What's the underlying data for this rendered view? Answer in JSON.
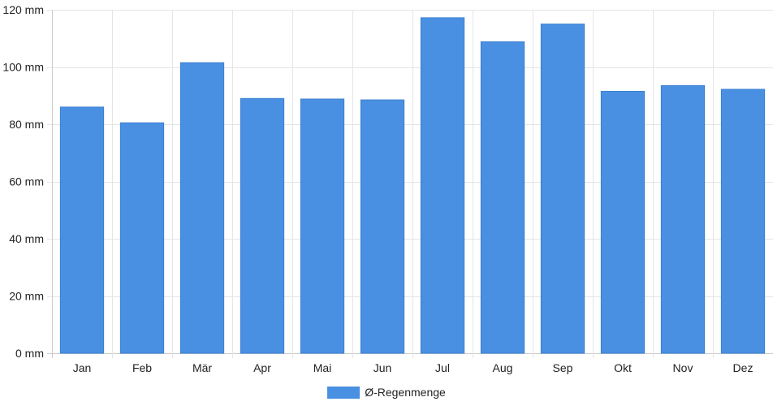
{
  "chart_data": {
    "type": "bar",
    "categories": [
      "Jan",
      "Feb",
      "Mär",
      "Apr",
      "Mai",
      "Jun",
      "Jul",
      "Aug",
      "Sep",
      "Okt",
      "Nov",
      "Dez"
    ],
    "series": [
      {
        "name": "Ø-Regenmenge",
        "values": [
          86,
          80.5,
          101.5,
          89,
          88.8,
          88.5,
          117.2,
          108.8,
          115,
          91.5,
          93.5,
          92.2
        ]
      }
    ],
    "y_tick_labels": [
      "0 mm",
      "20 mm",
      "40 mm",
      "60 mm",
      "80 mm",
      "100 mm",
      "120 mm"
    ],
    "y_ticks": [
      0,
      20,
      40,
      60,
      80,
      100,
      120
    ],
    "ylim": [
      0,
      120
    ],
    "unit": "mm",
    "grid": true,
    "legend_position": "bottom",
    "colors": {
      "bar": "#4a90e2",
      "grid": "#e5e5e5",
      "axis": "#cccccc"
    }
  }
}
